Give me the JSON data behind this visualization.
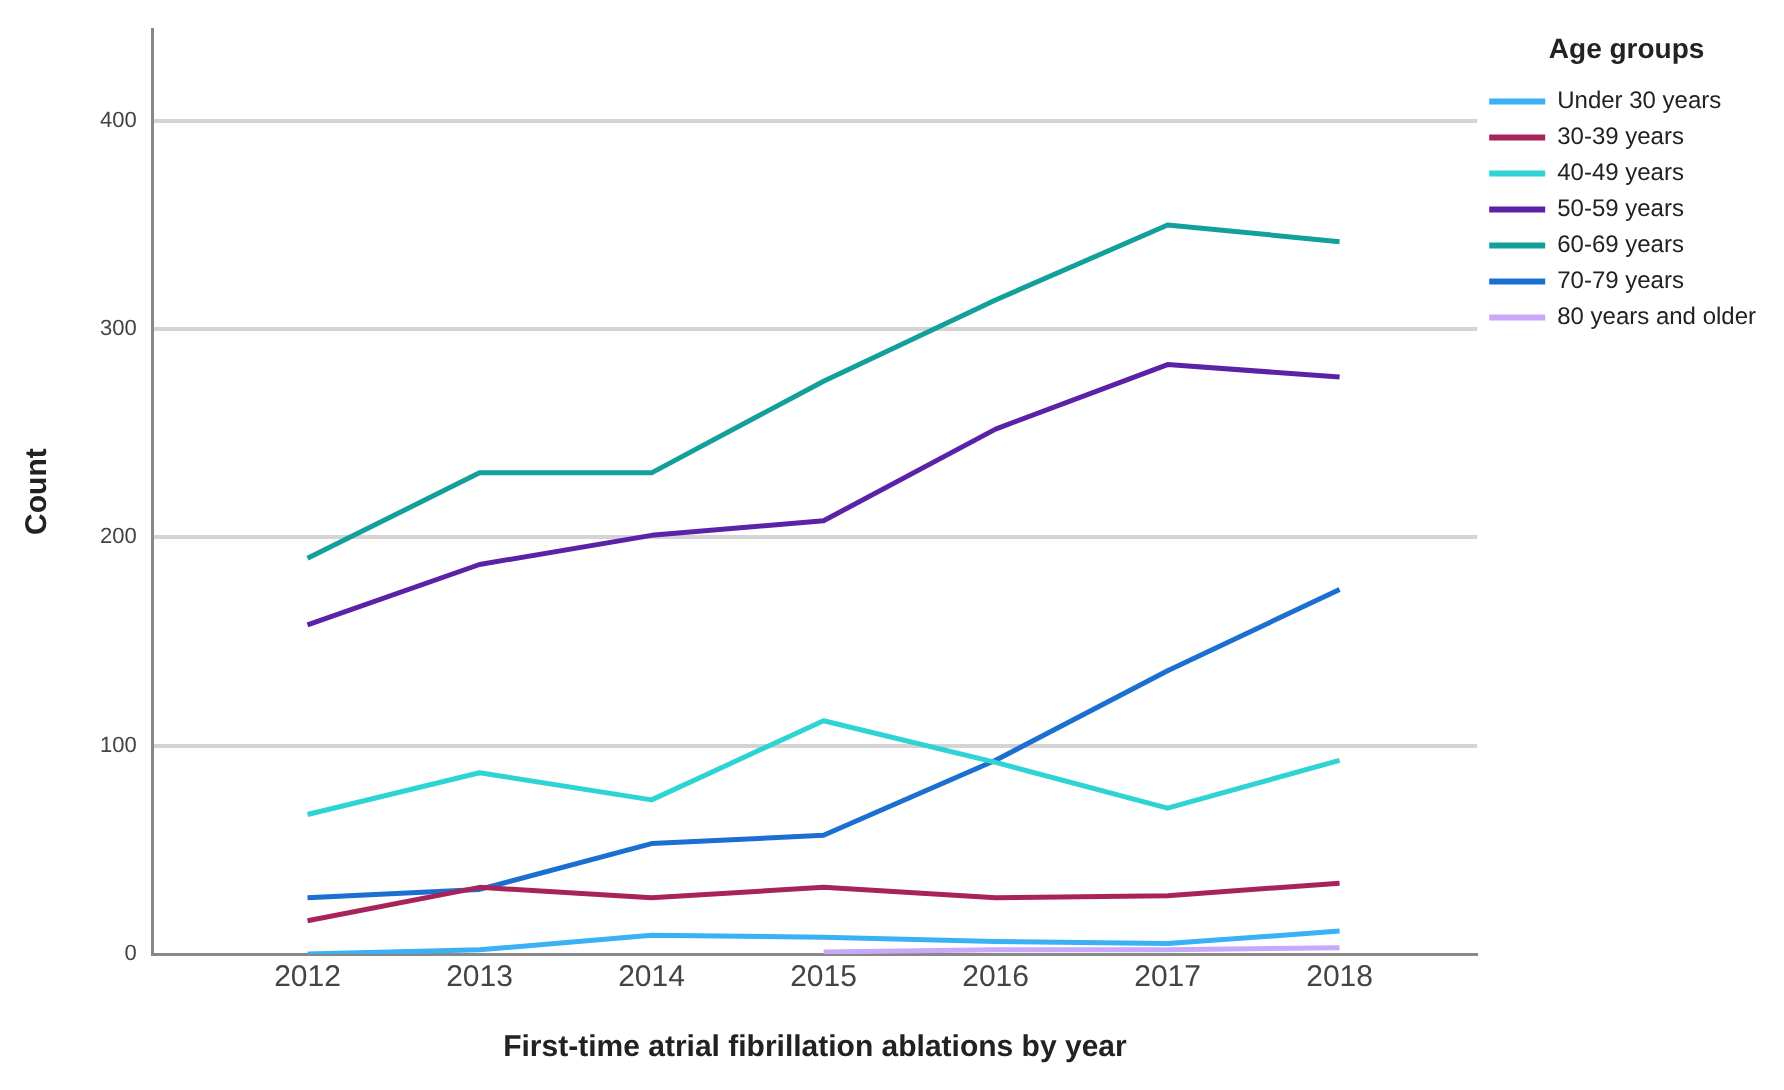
{
  "chart_data": {
    "type": "line",
    "xlabel": "First-time atrial fibrillation ablations by year",
    "ylabel": "Count",
    "legend_title": "Age groups",
    "x": [
      2012,
      2013,
      2014,
      2015,
      2016,
      2017,
      2018
    ],
    "series": [
      {
        "name": "Under 30 years",
        "color": "#3ab0f5",
        "values": [
          0,
          2,
          9,
          8,
          6,
          5,
          11
        ]
      },
      {
        "name": "30-39 years",
        "color": "#a8235a",
        "values": [
          16,
          32,
          27,
          32,
          27,
          28,
          34
        ]
      },
      {
        "name": "40-49 years",
        "color": "#2ed3d3",
        "values": [
          67,
          87,
          74,
          112,
          92,
          70,
          93
        ]
      },
      {
        "name": "50-59 years",
        "color": "#5b22a8",
        "values": [
          158,
          187,
          201,
          208,
          252,
          283,
          277
        ]
      },
      {
        "name": "60-69 years",
        "color": "#14a09a",
        "values": [
          190,
          231,
          231,
          275,
          314,
          350,
          342
        ]
      },
      {
        "name": "70-79 years",
        "color": "#1a6fd0",
        "values": [
          27,
          31,
          53,
          57,
          93,
          136,
          175
        ]
      },
      {
        "name": "80 years and older",
        "color": "#c8a8f8",
        "values": [
          null,
          null,
          null,
          1,
          2,
          2,
          3
        ]
      }
    ],
    "xlim": [
      2011.1,
      2018.8
    ],
    "xticks": [
      2012,
      2013,
      2014,
      2015,
      2016,
      2017,
      2018
    ],
    "ylim": [
      0,
      444
    ],
    "yticks": [
      0,
      100,
      200,
      300,
      400
    ],
    "grid": "y",
    "legend": "top right",
    "marker": "none",
    "line_style": "solid"
  }
}
